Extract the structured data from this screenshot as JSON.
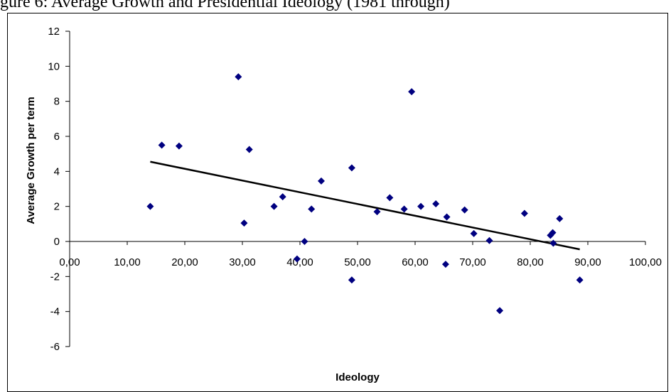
{
  "caption": "gure 6: Average Growth and Presidential Ideology (1981 through)",
  "chart_data": {
    "type": "scatter",
    "title": "",
    "xlabel": "Ideology",
    "ylabel": "Average Growth per term",
    "xlim": [
      0,
      100
    ],
    "ylim": [
      -6,
      12
    ],
    "x_ticks": [
      "0,00",
      "10,00",
      "20,00",
      "30,00",
      "40,00",
      "50,00",
      "60,00",
      "70,00",
      "80,00",
      "90,00",
      "100,00"
    ],
    "y_ticks": [
      "-6",
      "-4",
      "-2",
      "0",
      "2",
      "4",
      "6",
      "8",
      "10",
      "12"
    ],
    "grid": false,
    "marker_color": "#000080",
    "trendline_color": "#000000",
    "points": [
      {
        "x": 14.0,
        "y": 2.0
      },
      {
        "x": 16.0,
        "y": 5.5
      },
      {
        "x": 19.0,
        "y": 5.45
      },
      {
        "x": 29.3,
        "y": 9.4
      },
      {
        "x": 30.3,
        "y": 1.05
      },
      {
        "x": 31.2,
        "y": 5.25
      },
      {
        "x": 35.5,
        "y": 2.0
      },
      {
        "x": 37.0,
        "y": 2.55
      },
      {
        "x": 39.5,
        "y": -1.0
      },
      {
        "x": 40.8,
        "y": 0.0
      },
      {
        "x": 42.0,
        "y": 1.85
      },
      {
        "x": 43.7,
        "y": 3.45
      },
      {
        "x": 49.0,
        "y": 4.2
      },
      {
        "x": 49.0,
        "y": -2.2
      },
      {
        "x": 53.4,
        "y": 1.7
      },
      {
        "x": 55.6,
        "y": 2.5
      },
      {
        "x": 58.1,
        "y": 1.85
      },
      {
        "x": 59.4,
        "y": 8.55
      },
      {
        "x": 61.0,
        "y": 2.0
      },
      {
        "x": 63.6,
        "y": 2.15
      },
      {
        "x": 65.3,
        "y": -1.3
      },
      {
        "x": 65.5,
        "y": 1.4
      },
      {
        "x": 68.6,
        "y": 1.8
      },
      {
        "x": 70.2,
        "y": 0.45
      },
      {
        "x": 72.9,
        "y": 0.05
      },
      {
        "x": 74.7,
        "y": -3.95
      },
      {
        "x": 79.0,
        "y": 1.6
      },
      {
        "x": 83.5,
        "y": 0.35
      },
      {
        "x": 83.9,
        "y": 0.5
      },
      {
        "x": 84.0,
        "y": -0.1
      },
      {
        "x": 85.1,
        "y": 1.3
      },
      {
        "x": 88.6,
        "y": -2.2
      }
    ],
    "trendline": [
      {
        "x": 14.0,
        "y": 4.55
      },
      {
        "x": 88.6,
        "y": -0.45
      }
    ]
  }
}
